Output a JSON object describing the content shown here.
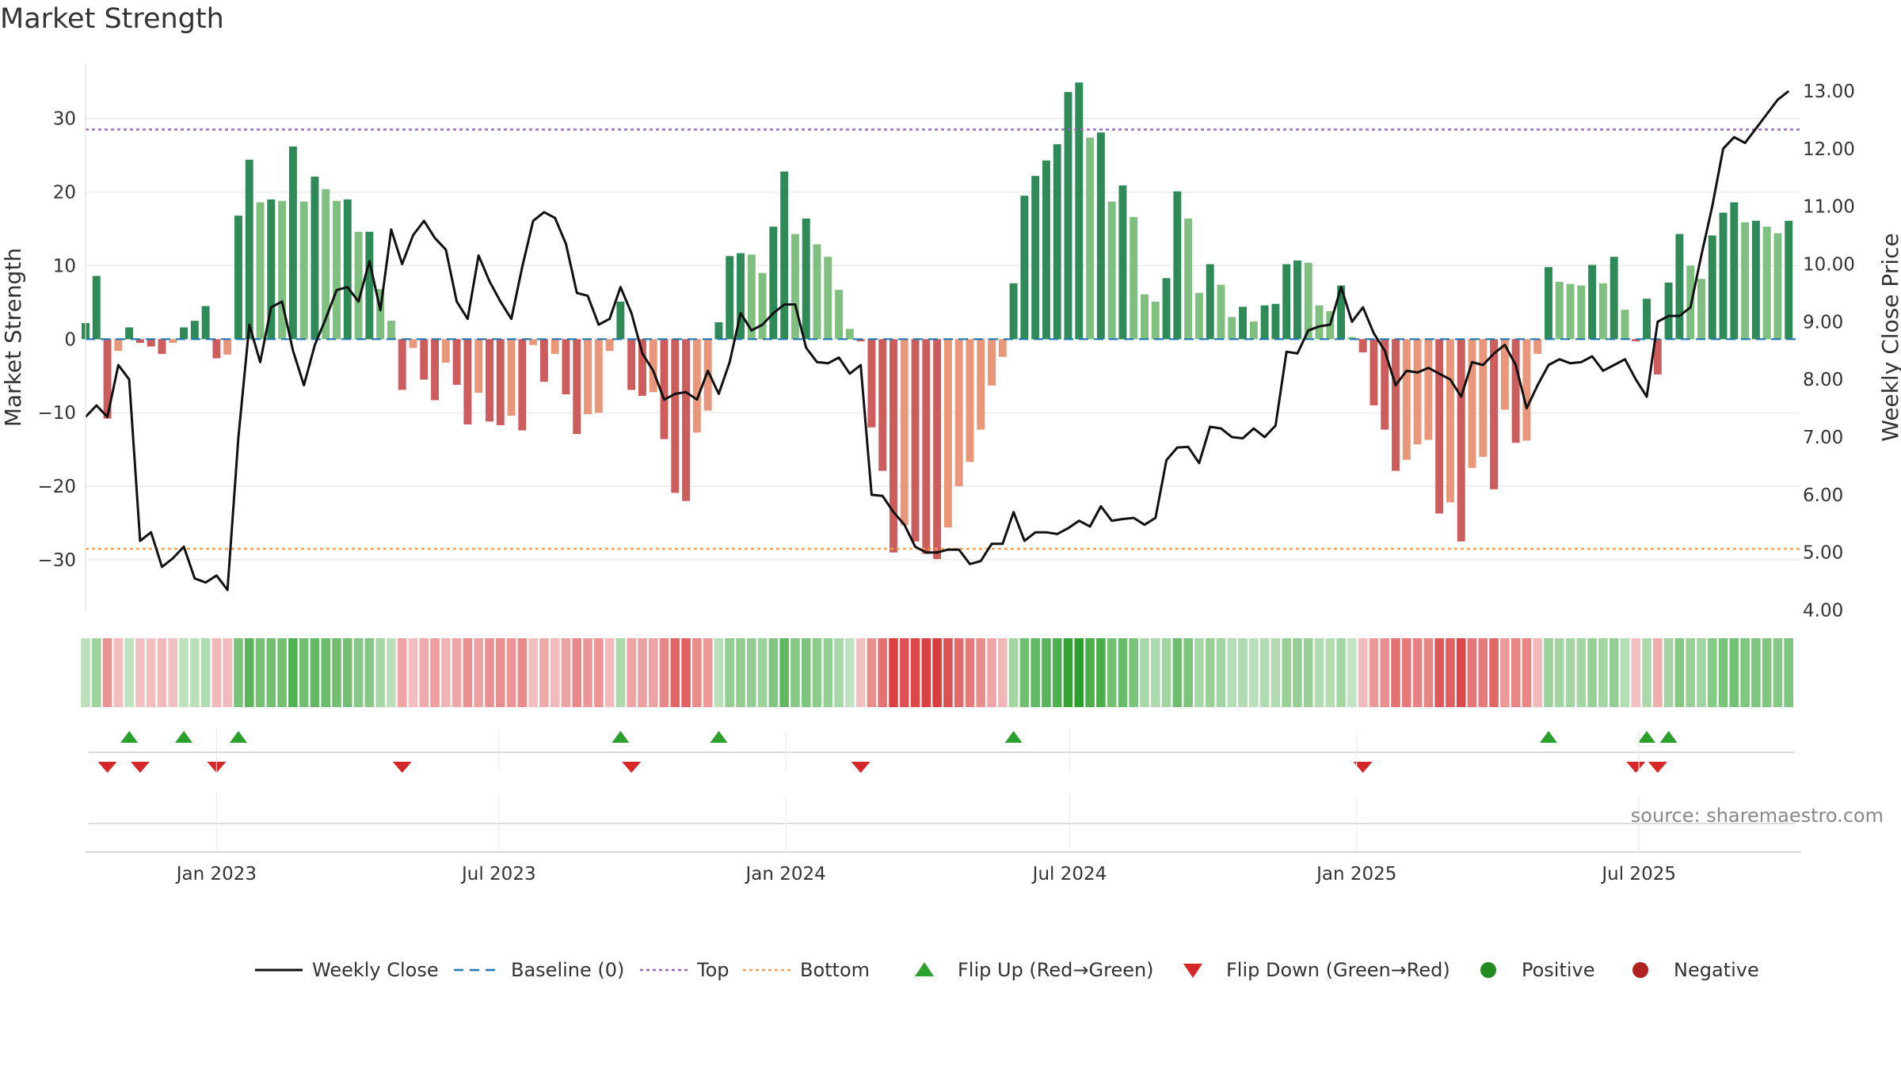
{
  "title": "Market Strength",
  "source": "source: sharemaestro.com",
  "colors": {
    "green_dark": "#2e8b57",
    "green_light": "#7fbf7f",
    "red_dark": "#cd5c5c",
    "red_light": "#e9967a",
    "top_line": "#9467bd",
    "bottom_line": "#f0a050",
    "baseline": "#1f77b4",
    "price_line": "#111111",
    "flip_up": "#2ca02c",
    "flip_down": "#d62728",
    "positive": "#228b22",
    "negative": "#b22222"
  },
  "chart_data": {
    "type": "bar",
    "ylabel": "Market Strength",
    "y2label": "Weekly Close Price",
    "ylim": [
      -37,
      37.5
    ],
    "y2lim": [
      3.98,
      13.48
    ],
    "yticks": [
      -30,
      -20,
      -10,
      0,
      10,
      20,
      30
    ],
    "y2ticks": [
      "4.00",
      "5.00",
      "6.00",
      "7.00",
      "8.00",
      "9.00",
      "10.00",
      "11.00",
      "12.00",
      "13.00"
    ],
    "xlim": [
      "2022-10-09",
      "2025-10-12"
    ],
    "xticks": [
      {
        "label": "Jan 2023",
        "date": "2023-01-01"
      },
      {
        "label": "Jul 2023",
        "date": "2023-07-01"
      },
      {
        "label": "Jan 2024",
        "date": "2024-01-01"
      },
      {
        "label": "Jul 2024",
        "date": "2024-07-01"
      },
      {
        "label": "Jan 2025",
        "date": "2025-01-01"
      },
      {
        "label": "Jul 2025",
        "date": "2025-07-01"
      }
    ],
    "start_week": "2022-10-09",
    "top": 28.5,
    "bottom": -28.5,
    "strength": [
      2.2,
      8.6,
      -10.8,
      -1.6,
      1.6,
      -0.5,
      -1.0,
      -2.0,
      -0.5,
      1.6,
      2.5,
      4.5,
      -2.6,
      -2.1,
      16.8,
      24.4,
      18.6,
      19.0,
      18.8,
      26.2,
      18.7,
      22.1,
      20.4,
      18.8,
      19.0,
      14.6,
      14.6,
      6.8,
      2.5,
      -6.9,
      -1.2,
      -5.5,
      -8.3,
      -3.2,
      -6.2,
      -11.6,
      -7.3,
      -11.2,
      -11.7,
      -10.4,
      -12.4,
      -0.8,
      -5.8,
      -2.0,
      -7.5,
      -12.9,
      -10.2,
      -10.0,
      -1.6,
      5.1,
      -6.9,
      -7.7,
      -7.2,
      -13.6,
      -20.9,
      -22.0,
      -12.7,
      -9.7,
      2.3,
      11.3,
      11.7,
      11.5,
      9.0,
      15.3,
      22.8,
      14.3,
      16.4,
      12.9,
      11.2,
      6.7,
      1.4,
      -0.3,
      -12.0,
      -17.9,
      -29.0,
      -25.3,
      -27.5,
      -29.2,
      -29.9,
      -25.6,
      -20.0,
      -16.7,
      -12.3,
      -6.3,
      -2.4,
      7.6,
      19.5,
      22.2,
      24.3,
      26.5,
      33.6,
      34.9,
      27.4,
      28.1,
      18.7,
      20.9,
      16.6,
      6.1,
      5.1,
      8.3,
      20.1,
      16.4,
      6.3,
      10.2,
      7.4,
      3.0,
      4.4,
      2.4,
      4.6,
      4.8,
      10.2,
      10.7,
      10.4,
      4.6,
      3.8,
      7.3,
      0.3,
      -1.8,
      -9.0,
      -12.3,
      -17.9,
      -16.4,
      -14.3,
      -13.7,
      -23.7,
      -22.2,
      -27.5,
      -17.5,
      -16.0,
      -20.4,
      -9.6,
      -14.1,
      -13.8,
      -2.0,
      9.8,
      7.8,
      7.5,
      7.3,
      10.1,
      7.6,
      11.2,
      4.0,
      -0.3,
      5.5,
      -4.8,
      7.7,
      14.3,
      10.0,
      8.2,
      14.1,
      17.2,
      18.6,
      15.9,
      16.1,
      15.3,
      14.4,
      16.1
    ],
    "close": [
      7.35,
      7.55,
      7.35,
      8.25,
      8.0,
      5.2,
      5.35,
      4.75,
      4.9,
      5.1,
      4.55,
      4.48,
      4.6,
      4.35,
      7.0,
      8.95,
      8.3,
      9.25,
      9.35,
      8.5,
      7.9,
      8.6,
      9.05,
      9.55,
      9.6,
      9.35,
      10.05,
      9.2,
      10.6,
      10.0,
      10.5,
      10.75,
      10.45,
      10.25,
      9.35,
      9.05,
      10.15,
      9.7,
      9.35,
      9.05,
      9.95,
      10.75,
      10.9,
      10.8,
      10.35,
      9.5,
      9.45,
      8.95,
      9.05,
      9.6,
      9.15,
      8.45,
      8.15,
      7.65,
      7.75,
      7.78,
      7.65,
      8.15,
      7.75,
      8.3,
      9.15,
      8.85,
      8.95,
      9.15,
      9.3,
      9.3,
      8.55,
      8.3,
      8.28,
      8.38,
      8.1,
      8.25,
      6.0,
      5.98,
      5.7,
      5.48,
      5.1,
      5.0,
      5.0,
      5.05,
      5.05,
      4.8,
      4.85,
      5.15,
      5.15,
      5.7,
      5.2,
      5.35,
      5.35,
      5.32,
      5.42,
      5.55,
      5.45,
      5.8,
      5.55,
      5.58,
      5.6,
      5.48,
      5.6,
      6.6,
      6.82,
      6.83,
      6.55,
      7.18,
      7.15,
      7.0,
      6.98,
      7.15,
      7.0,
      7.2,
      8.48,
      8.45,
      8.85,
      8.92,
      8.95,
      9.6,
      9.0,
      9.25,
      8.8,
      8.5,
      7.9,
      8.15,
      8.12,
      8.2,
      8.1,
      8.0,
      7.7,
      8.3,
      8.25,
      8.45,
      8.6,
      8.25,
      7.5,
      7.9,
      8.25,
      8.35,
      8.28,
      8.3,
      8.4,
      8.15,
      8.25,
      8.35,
      8.0,
      7.7,
      9.0,
      9.1,
      9.1,
      9.25,
      10.15,
      11.0,
      12.0,
      12.2,
      12.1,
      12.35,
      12.6,
      12.85,
      13.0
    ]
  },
  "legend": [
    {
      "key": "close",
      "label": "Weekly Close"
    },
    {
      "key": "baseline",
      "label": "Baseline (0)"
    },
    {
      "key": "top",
      "label": "Top"
    },
    {
      "key": "bottom",
      "label": "Bottom"
    },
    {
      "key": "flip_up",
      "label": "Flip Up (Red→Green)"
    },
    {
      "key": "flip_down",
      "label": "Flip Down (Green→Red)"
    },
    {
      "key": "positive",
      "label": "Positive"
    },
    {
      "key": "negative",
      "label": "Negative"
    }
  ]
}
